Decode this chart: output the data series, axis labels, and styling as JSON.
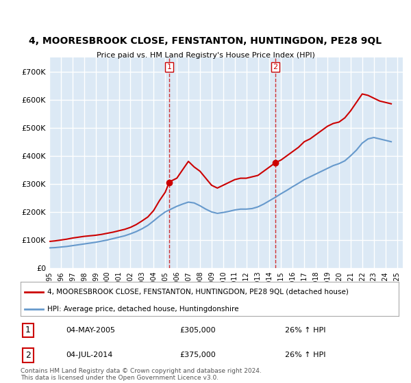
{
  "title": "4, MOORESBROOK CLOSE, FENSTANTON, HUNTINGDON, PE28 9QL",
  "subtitle": "Price paid vs. HM Land Registry's House Price Index (HPI)",
  "red_label": "4, MOORESBROOK CLOSE, FENSTANTON, HUNTINGDON, PE28 9QL (detached house)",
  "blue_label": "HPI: Average price, detached house, Huntingdonshire",
  "footnote": "Contains HM Land Registry data © Crown copyright and database right 2024.\nThis data is licensed under the Open Government Licence v3.0.",
  "marker1_date": 2005.34,
  "marker1_label": "1",
  "marker1_price": 305000,
  "marker1_text": "04-MAY-2005",
  "marker1_hpi": "26% ↑ HPI",
  "marker2_date": 2014.5,
  "marker2_label": "2",
  "marker2_price": 375000,
  "marker2_text": "04-JUL-2014",
  "marker2_hpi": "26% ↑ HPI",
  "ylim": [
    0,
    750000
  ],
  "xlim_start": 1995,
  "xlim_end": 2025.5,
  "background_color": "#dce9f5",
  "plot_bg": "#dce9f5",
  "red_color": "#cc0000",
  "blue_color": "#6699cc",
  "grid_color": "#ffffff",
  "yticks": [
    0,
    100000,
    200000,
    300000,
    400000,
    500000,
    600000,
    700000
  ],
  "ytick_labels": [
    "£0",
    "£100K",
    "£200K",
    "£300K",
    "£400K",
    "£500K",
    "£600K",
    "£700K"
  ],
  "xtick_years": [
    1995,
    1996,
    1997,
    1998,
    1999,
    2000,
    2001,
    2002,
    2003,
    2004,
    2005,
    2006,
    2007,
    2008,
    2009,
    2010,
    2011,
    2012,
    2013,
    2014,
    2015,
    2016,
    2017,
    2018,
    2019,
    2020,
    2021,
    2022,
    2023,
    2024,
    2025
  ],
  "red_x": [
    1995.0,
    1995.5,
    1996.0,
    1996.5,
    1997.0,
    1997.5,
    1998.0,
    1998.5,
    1999.0,
    1999.5,
    2000.0,
    2000.5,
    2001.0,
    2001.5,
    2002.0,
    2002.5,
    2003.0,
    2003.5,
    2004.0,
    2004.5,
    2005.0,
    2005.34,
    2005.5,
    2006.0,
    2006.5,
    2007.0,
    2007.5,
    2008.0,
    2008.5,
    2009.0,
    2009.5,
    2010.0,
    2010.5,
    2011.0,
    2011.5,
    2012.0,
    2012.5,
    2013.0,
    2013.5,
    2014.0,
    2014.5,
    2014.5,
    2015.0,
    2015.5,
    2016.0,
    2016.5,
    2017.0,
    2017.5,
    2018.0,
    2018.5,
    2019.0,
    2019.5,
    2020.0,
    2020.5,
    2021.0,
    2021.5,
    2022.0,
    2022.5,
    2023.0,
    2023.5,
    2024.0,
    2024.5
  ],
  "red_y": [
    95000,
    97000,
    100000,
    103000,
    107000,
    110000,
    113000,
    115000,
    117000,
    120000,
    124000,
    128000,
    133000,
    138000,
    145000,
    155000,
    168000,
    182000,
    205000,
    240000,
    270000,
    305000,
    310000,
    320000,
    350000,
    380000,
    360000,
    345000,
    320000,
    295000,
    285000,
    295000,
    305000,
    315000,
    320000,
    320000,
    325000,
    330000,
    345000,
    360000,
    375000,
    375000,
    385000,
    400000,
    415000,
    430000,
    450000,
    460000,
    475000,
    490000,
    505000,
    515000,
    520000,
    535000,
    560000,
    590000,
    620000,
    615000,
    605000,
    595000,
    590000,
    585000
  ],
  "blue_x": [
    1995.0,
    1995.5,
    1996.0,
    1996.5,
    1997.0,
    1997.5,
    1998.0,
    1998.5,
    1999.0,
    1999.5,
    2000.0,
    2000.5,
    2001.0,
    2001.5,
    2002.0,
    2002.5,
    2003.0,
    2003.5,
    2004.0,
    2004.5,
    2005.0,
    2005.5,
    2006.0,
    2006.5,
    2007.0,
    2007.5,
    2008.0,
    2008.5,
    2009.0,
    2009.5,
    2010.0,
    2010.5,
    2011.0,
    2011.5,
    2012.0,
    2012.5,
    2013.0,
    2013.5,
    2014.0,
    2014.5,
    2015.0,
    2015.5,
    2016.0,
    2016.5,
    2017.0,
    2017.5,
    2018.0,
    2018.5,
    2019.0,
    2019.5,
    2020.0,
    2020.5,
    2021.0,
    2021.5,
    2022.0,
    2022.5,
    2023.0,
    2023.5,
    2024.0,
    2024.5
  ],
  "blue_y": [
    72000,
    73000,
    75000,
    77000,
    80000,
    83000,
    86000,
    89000,
    92000,
    96000,
    100000,
    105000,
    110000,
    115000,
    122000,
    130000,
    140000,
    152000,
    168000,
    185000,
    200000,
    210000,
    220000,
    228000,
    235000,
    232000,
    222000,
    210000,
    200000,
    195000,
    198000,
    202000,
    207000,
    210000,
    210000,
    212000,
    218000,
    228000,
    240000,
    252000,
    265000,
    277000,
    290000,
    302000,
    315000,
    325000,
    335000,
    345000,
    355000,
    365000,
    372000,
    382000,
    400000,
    420000,
    445000,
    460000,
    465000,
    460000,
    455000,
    450000
  ]
}
